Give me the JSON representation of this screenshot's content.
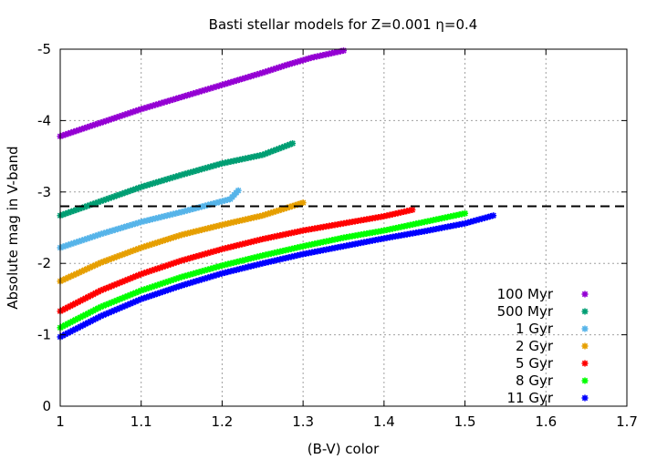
{
  "chart_data": {
    "type": "scatter",
    "title": "Basti stellar models for Z=0.001 η=0.4",
    "xlabel": "(B-V) color",
    "ylabel": "Absolute mag in V-band",
    "xlim": [
      1.0,
      1.7
    ],
    "ylim": [
      0,
      -5
    ],
    "y_reversed": true,
    "xticks": [
      "1",
      "1.1",
      "1.2",
      "1.3",
      "1.4",
      "1.5",
      "1.6",
      "1.7"
    ],
    "yticks": [
      "0",
      "-1",
      "-2",
      "-3",
      "-4",
      "-5"
    ],
    "grid": true,
    "legend_position": "bottom-right",
    "reference_line": {
      "y": -2.8,
      "style": "dashed",
      "color": "#000000"
    },
    "series": [
      {
        "name": "100 Myr",
        "color": "#9400d3",
        "points": [
          [
            1.0,
            -3.78
          ],
          [
            1.05,
            -3.97
          ],
          [
            1.1,
            -4.16
          ],
          [
            1.15,
            -4.33
          ],
          [
            1.2,
            -4.5
          ],
          [
            1.25,
            -4.67
          ],
          [
            1.28,
            -4.78
          ],
          [
            1.31,
            -4.88
          ],
          [
            1.35,
            -4.98
          ]
        ]
      },
      {
        "name": "500 Myr",
        "color": "#009e73",
        "points": [
          [
            1.0,
            -2.67
          ],
          [
            1.05,
            -2.87
          ],
          [
            1.1,
            -3.07
          ],
          [
            1.15,
            -3.24
          ],
          [
            1.2,
            -3.4
          ],
          [
            1.25,
            -3.52
          ],
          [
            1.287,
            -3.68
          ]
        ]
      },
      {
        "name": "1 Gyr",
        "color": "#56b4e9",
        "points": [
          [
            1.0,
            -2.22
          ],
          [
            1.05,
            -2.41
          ],
          [
            1.1,
            -2.58
          ],
          [
            1.15,
            -2.72
          ],
          [
            1.2,
            -2.87
          ],
          [
            1.21,
            -2.9
          ],
          [
            1.22,
            -3.02
          ]
        ]
      },
      {
        "name": "2 Gyr",
        "color": "#e69f00",
        "points": [
          [
            1.0,
            -1.75
          ],
          [
            1.05,
            -2.01
          ],
          [
            1.1,
            -2.22
          ],
          [
            1.15,
            -2.4
          ],
          [
            1.2,
            -2.54
          ],
          [
            1.25,
            -2.67
          ],
          [
            1.3,
            -2.85
          ]
        ]
      },
      {
        "name": "5 Gyr",
        "color": "#ff0000",
        "points": [
          [
            1.0,
            -1.33
          ],
          [
            1.05,
            -1.62
          ],
          [
            1.1,
            -1.85
          ],
          [
            1.15,
            -2.04
          ],
          [
            1.2,
            -2.2
          ],
          [
            1.25,
            -2.34
          ],
          [
            1.3,
            -2.46
          ],
          [
            1.35,
            -2.56
          ],
          [
            1.4,
            -2.66
          ],
          [
            1.435,
            -2.75
          ]
        ]
      },
      {
        "name": "8 Gyr",
        "color": "#00ff00",
        "points": [
          [
            1.0,
            -1.1
          ],
          [
            1.05,
            -1.39
          ],
          [
            1.1,
            -1.62
          ],
          [
            1.15,
            -1.81
          ],
          [
            1.2,
            -1.97
          ],
          [
            1.25,
            -2.11
          ],
          [
            1.3,
            -2.24
          ],
          [
            1.35,
            -2.36
          ],
          [
            1.4,
            -2.46
          ],
          [
            1.45,
            -2.58
          ],
          [
            1.5,
            -2.7
          ]
        ]
      },
      {
        "name": "11 Gyr",
        "color": "#0000ff",
        "points": [
          [
            1.0,
            -0.97
          ],
          [
            1.05,
            -1.26
          ],
          [
            1.1,
            -1.5
          ],
          [
            1.15,
            -1.69
          ],
          [
            1.2,
            -1.86
          ],
          [
            1.25,
            -2.0
          ],
          [
            1.3,
            -2.13
          ],
          [
            1.35,
            -2.24
          ],
          [
            1.4,
            -2.35
          ],
          [
            1.45,
            -2.45
          ],
          [
            1.5,
            -2.56
          ],
          [
            1.535,
            -2.67
          ]
        ]
      }
    ]
  }
}
